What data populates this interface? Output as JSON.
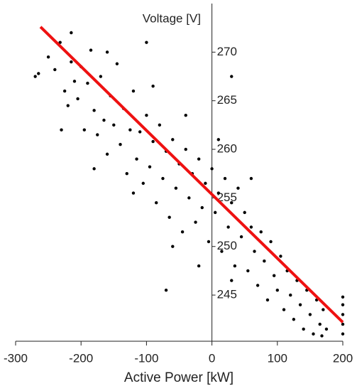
{
  "chart_data": {
    "type": "scatter",
    "xlabel": "Active Power [kW]",
    "ylabel": "Voltage [V]",
    "x": [
      -265,
      -250,
      -240,
      -232,
      -225,
      -220,
      -215,
      -210,
      -205,
      -200,
      -195,
      -190,
      -185,
      -180,
      -175,
      -170,
      -165,
      -160,
      -155,
      -150,
      -145,
      -140,
      -135,
      -130,
      -125,
      -120,
      -115,
      -110,
      -105,
      -100,
      -95,
      -90,
      -85,
      -80,
      -75,
      -70,
      -65,
      -60,
      -55,
      -50,
      -45,
      -40,
      -35,
      -30,
      -25,
      -20,
      -15,
      -10,
      -5,
      0,
      5,
      10,
      15,
      20,
      25,
      30,
      35,
      40,
      45,
      50,
      55,
      60,
      65,
      70,
      75,
      80,
      85,
      90,
      95,
      100,
      105,
      110,
      115,
      120,
      125,
      130,
      135,
      140,
      145,
      150,
      155,
      160,
      165,
      168,
      170,
      175,
      -230,
      -160,
      -90,
      -40,
      10,
      60,
      -180,
      -120,
      -60,
      -20,
      30,
      -70,
      200,
      200,
      200,
      200,
      200,
      -270,
      -215,
      -100,
      30
    ],
    "values": [
      267.8,
      269.5,
      268.2,
      271,
      266,
      264.5,
      269,
      267,
      265.2,
      268.5,
      262,
      266.8,
      270.2,
      264,
      261.5,
      267.5,
      263,
      259.5,
      265.5,
      262.5,
      268.8,
      260.5,
      264.2,
      257.5,
      262,
      266,
      259,
      261.8,
      256.5,
      263.5,
      258.2,
      260.8,
      254.5,
      262.5,
      257,
      259.8,
      253,
      261,
      256,
      258.5,
      251.5,
      260,
      255,
      257.5,
      252.5,
      259,
      254,
      256.5,
      250.5,
      258,
      253.5,
      255.5,
      249.5,
      257,
      252,
      254.5,
      248,
      256,
      251,
      253.5,
      247.5,
      252,
      249.5,
      246,
      251.5,
      248.5,
      244.5,
      250.5,
      247,
      245.5,
      249,
      243.5,
      247.5,
      245,
      242.5,
      246.5,
      244,
      241.5,
      245.5,
      243,
      241,
      244.5,
      242,
      240.8,
      243.5,
      241.5,
      262,
      270,
      266.5,
      263.5,
      261,
      257,
      258,
      255.5,
      250,
      248,
      246.5,
      245.5,
      241,
      242,
      243,
      244,
      244.8,
      267.5,
      272,
      271,
      267.5
    ],
    "color": "#000000",
    "fit": {
      "x": [
        -262,
        200
      ],
      "values": [
        272.6,
        242.2
      ],
      "color": "#ee1111"
    },
    "xlim": [
      -300,
      200
    ],
    "ylim": [
      240.25,
      275
    ],
    "xticks": [
      -300,
      -200,
      -100,
      0,
      100,
      200
    ],
    "yticks": [
      245,
      250,
      255,
      260,
      265,
      270
    ]
  }
}
